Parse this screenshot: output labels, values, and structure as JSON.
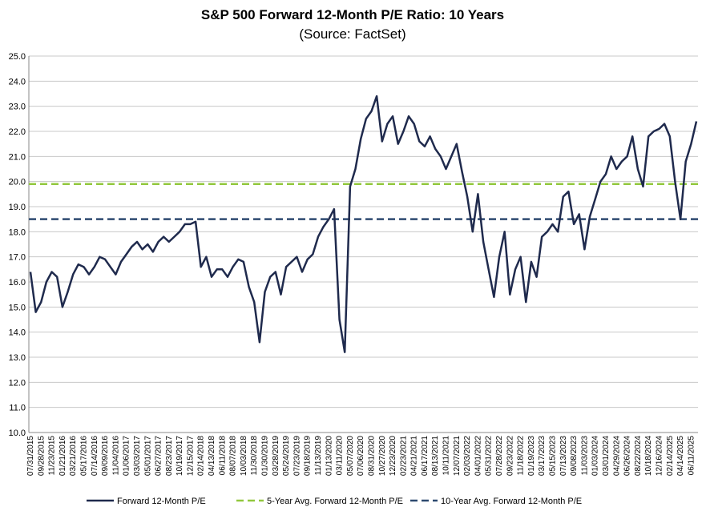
{
  "chart_data": {
    "type": "line",
    "title": "S&P 500 Forward 12-Month P/E Ratio: 10 Years",
    "subtitle": "(Source: FactSet)",
    "categories": [
      "07/31/2015",
      null,
      "09/28/2015",
      null,
      "11/23/2015",
      null,
      "01/21/2016",
      null,
      "03/21/2016",
      null,
      "05/17/2016",
      null,
      "07/14/2016",
      null,
      "09/09/2016",
      null,
      "11/04/2016",
      null,
      "01/06/2017",
      null,
      "03/03/2017",
      null,
      "05/01/2017",
      null,
      "06/27/2017",
      null,
      "08/23/2017",
      null,
      "10/19/2017",
      null,
      "12/15/2017",
      null,
      "02/14/2018",
      null,
      "04/13/2018",
      null,
      "06/11/2018",
      null,
      "08/07/2018",
      null,
      "10/03/2018",
      null,
      "11/30/2018",
      null,
      "01/30/2019",
      null,
      "03/28/2019",
      null,
      "05/24/2019",
      null,
      "07/23/2019",
      null,
      "09/18/2019",
      null,
      "11/13/2019",
      null,
      "01/13/2020",
      null,
      "03/11/2020",
      null,
      "05/07/2020",
      null,
      "07/06/2020",
      null,
      "08/31/2020",
      null,
      "10/27/2020",
      null,
      "12/23/2020",
      null,
      "02/23/2021",
      null,
      "04/21/2021",
      null,
      "06/17/2021",
      null,
      "08/13/2021",
      null,
      "10/11/2021",
      null,
      "12/07/2021",
      null,
      "02/03/2022",
      null,
      "04/01/2022",
      null,
      "05/31/2022",
      null,
      "07/28/2022",
      null,
      "09/23/2022",
      null,
      "11/18/2022",
      null,
      "01/19/2023",
      null,
      "03/17/2023",
      null,
      "05/15/2023",
      null,
      "07/13/2023",
      null,
      "09/08/2023",
      null,
      "11/03/2023",
      null,
      "01/03/2024",
      null,
      "03/01/2024",
      null,
      "04/29/2024",
      null,
      "06/26/2024",
      null,
      "08/22/2024",
      null,
      "10/18/2024",
      null,
      "12/16/2024",
      null,
      "02/14/2025",
      null,
      "04/14/2025",
      null,
      "06/11/2025",
      null
    ],
    "series": [
      {
        "name": "Forward 12-Month P/E",
        "color": "#1f2a4d",
        "values": [
          16.4,
          14.8,
          15.2,
          16.0,
          16.4,
          16.2,
          15.0,
          15.6,
          16.3,
          16.7,
          16.6,
          16.3,
          16.6,
          17.0,
          16.9,
          16.6,
          16.3,
          16.8,
          17.1,
          17.4,
          17.6,
          17.3,
          17.5,
          17.2,
          17.6,
          17.8,
          17.6,
          17.8,
          18.0,
          18.3,
          18.3,
          18.4,
          16.6,
          17.0,
          16.2,
          16.5,
          16.5,
          16.2,
          16.6,
          16.9,
          16.8,
          15.8,
          15.2,
          13.6,
          15.6,
          16.2,
          16.4,
          15.5,
          16.6,
          16.8,
          17.0,
          16.4,
          16.9,
          17.1,
          17.8,
          18.2,
          18.5,
          18.9,
          14.5,
          13.2,
          19.8,
          20.5,
          21.7,
          22.5,
          22.8,
          23.4,
          21.6,
          22.3,
          22.6,
          21.5,
          22.0,
          22.6,
          22.3,
          21.6,
          21.4,
          21.8,
          21.3,
          21.0,
          20.5,
          21.0,
          21.5,
          20.4,
          19.4,
          18.0,
          19.5,
          17.6,
          16.5,
          15.4,
          17.0,
          18.0,
          15.5,
          16.5,
          17.0,
          15.2,
          16.8,
          16.2,
          17.8,
          18.0,
          18.3,
          18.0,
          19.4,
          19.6,
          18.3,
          18.7,
          17.3,
          18.6,
          19.3,
          20.0,
          20.3,
          21.0,
          20.5,
          20.8,
          21.0,
          21.8,
          20.5,
          19.8,
          21.8,
          22.0,
          22.1,
          22.3,
          21.8,
          20.0,
          18.5,
          20.8,
          21.5,
          22.4
        ]
      }
    ],
    "reference_lines": [
      {
        "name": "5-Year Avg. Forward 12-Month P/E",
        "color": "#92c83e",
        "value": 19.9
      },
      {
        "name": "10-Year Avg. Forward 12-Month P/E",
        "color": "#2e4a70",
        "value": 18.5
      }
    ],
    "ylim": [
      10,
      25
    ],
    "yticks": [
      {
        "value": 10,
        "label": "10.0"
      },
      {
        "value": 11,
        "label": "11.0"
      },
      {
        "value": 12,
        "label": "12.0"
      },
      {
        "value": 13,
        "label": "13.0"
      },
      {
        "value": 14,
        "label": "14.0"
      },
      {
        "value": 15,
        "label": "15.0"
      },
      {
        "value": 16,
        "label": "16.0"
      },
      {
        "value": 17,
        "label": "17.0"
      },
      {
        "value": 18,
        "label": "18.0"
      },
      {
        "value": 19,
        "label": "19.0"
      },
      {
        "value": 20,
        "label": "20.0"
      },
      {
        "value": 21,
        "label": "21.0"
      },
      {
        "value": 22,
        "label": "22.0"
      },
      {
        "value": 23,
        "label": "23.0"
      },
      {
        "value": 24,
        "label": "24.0"
      },
      {
        "value": 25,
        "label": "25.0"
      }
    ],
    "grid": true
  }
}
